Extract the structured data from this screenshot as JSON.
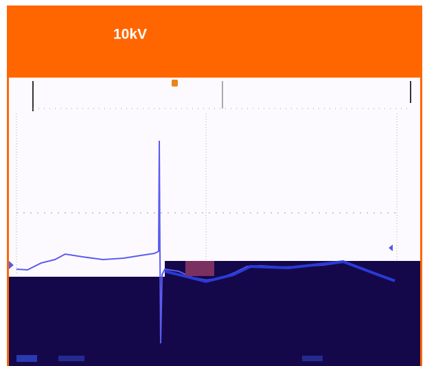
{
  "header": {
    "title": "10kV"
  }
}
